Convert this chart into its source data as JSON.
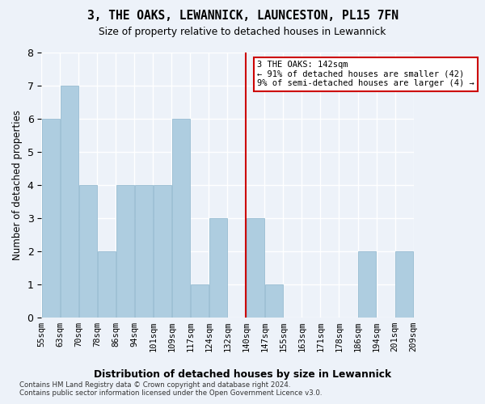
{
  "title": "3, THE OAKS, LEWANNICK, LAUNCESTON, PL15 7FN",
  "subtitle": "Size of property relative to detached houses in Lewannick",
  "xlabel": "Distribution of detached houses by size in Lewannick",
  "ylabel": "Number of detached properties",
  "bins": [
    "55sqm",
    "63sqm",
    "70sqm",
    "78sqm",
    "86sqm",
    "94sqm",
    "101sqm",
    "109sqm",
    "117sqm",
    "124sqm",
    "132sqm",
    "140sqm",
    "147sqm",
    "155sqm",
    "163sqm",
    "171sqm",
    "178sqm",
    "186sqm",
    "194sqm",
    "201sqm",
    "209sqm"
  ],
  "bar_values": [
    6,
    7,
    4,
    2,
    4,
    4,
    4,
    6,
    1,
    3,
    0,
    3,
    1,
    0,
    0,
    0,
    0,
    2,
    0,
    2
  ],
  "bar_color": "#aecde0",
  "bar_edgecolor": "#8ab4cc",
  "highlight_bin_index": 11,
  "highlight_color": "#cc0000",
  "annotation_text": "3 THE OAKS: 142sqm\n← 91% of detached houses are smaller (42)\n9% of semi-detached houses are larger (4) →",
  "annotation_box_color": "#ffffff",
  "annotation_box_edgecolor": "#cc0000",
  "ylim": [
    0,
    8
  ],
  "yticks": [
    0,
    1,
    2,
    3,
    4,
    5,
    6,
    7,
    8
  ],
  "background_color": "#edf2f9",
  "grid_color": "#ffffff",
  "footnote1": "Contains HM Land Registry data © Crown copyright and database right 2024.",
  "footnote2": "Contains public sector information licensed under the Open Government Licence v3.0."
}
